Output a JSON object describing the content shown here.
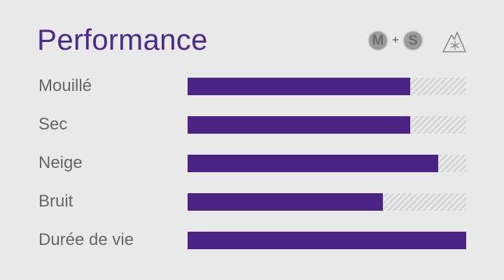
{
  "header": {
    "title": "Performance",
    "badge_m": "M",
    "badge_plus": "+",
    "badge_s": "S",
    "icons": [
      "mud-snow-badge",
      "three-peak-snowflake-icon"
    ]
  },
  "colors": {
    "accent": "#4b2384",
    "title": "#4a2a8a",
    "label": "#666666",
    "track": "#d9d9d9",
    "background": "#e9e9e9"
  },
  "ratings": [
    {
      "label": "Mouillé",
      "value": 0.8
    },
    {
      "label": "Sec",
      "value": 0.8
    },
    {
      "label": "Neige",
      "value": 0.9
    },
    {
      "label": "Bruit",
      "value": 0.7
    },
    {
      "label": "Durée de vie",
      "value": 1.0
    }
  ]
}
